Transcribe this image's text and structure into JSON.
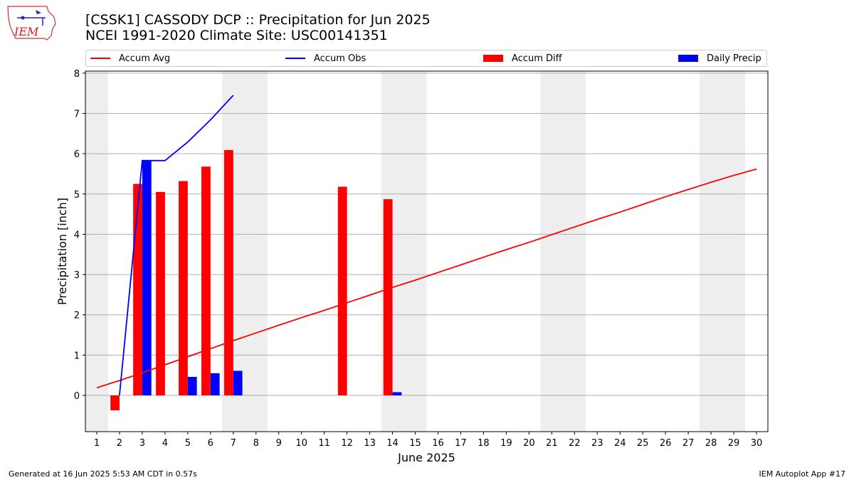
{
  "header": {
    "title_line1": "[CSSK1] CASSODY DCP :: Precipitation for Jun 2025",
    "title_line2": "NCEI 1991-2020 Climate Site: USC00141351",
    "logo_text": "IEM"
  },
  "legend": {
    "items": [
      {
        "label": "Accum Avg",
        "color": "#ff0000",
        "kind": "line"
      },
      {
        "label": "Accum Obs",
        "color": "#0000ff",
        "kind": "line"
      },
      {
        "label": "Accum Diff",
        "color": "#ff0000",
        "kind": "patch"
      },
      {
        "label": "Daily Precip",
        "color": "#0000ff",
        "kind": "patch"
      }
    ]
  },
  "footer": {
    "left": "Generated at 16 Jun 2025 5:53 AM CDT in 0.57s",
    "right": "IEM Autoplot App #17"
  },
  "chart_data": {
    "type": "bar",
    "title": "[CSSK1] CASSODY DCP :: Precipitation for Jun 2025",
    "subtitle": "NCEI 1991-2020 Climate Site: USC00141351",
    "xlabel": "June 2025",
    "ylabel": "Precipitation [inch]",
    "x": [
      1,
      2,
      3,
      4,
      5,
      6,
      7,
      8,
      9,
      10,
      11,
      12,
      13,
      14,
      15,
      16,
      17,
      18,
      19,
      20,
      21,
      22,
      23,
      24,
      25,
      26,
      27,
      28,
      29,
      30
    ],
    "xlim": [
      0.5,
      30.5
    ],
    "ylim": [
      -0.9,
      8.05
    ],
    "yticks": [
      0,
      1,
      2,
      3,
      4,
      5,
      6,
      7,
      8
    ],
    "grid": true,
    "legend_placement": "top",
    "weekend_shading": [
      [
        0.5,
        1.5
      ],
      [
        6.5,
        8.5
      ],
      [
        13.5,
        15.5
      ],
      [
        20.5,
        22.5
      ],
      [
        27.5,
        29.5
      ]
    ],
    "series": [
      {
        "name": "Accum Avg",
        "kind": "line",
        "color": "#ff0000",
        "values": [
          0.19,
          0.37,
          0.56,
          0.76,
          0.96,
          1.16,
          1.36,
          1.55,
          1.74,
          1.93,
          2.11,
          2.3,
          2.49,
          2.68,
          2.86,
          3.05,
          3.24,
          3.43,
          3.62,
          3.8,
          3.99,
          4.18,
          4.37,
          4.55,
          4.74,
          4.93,
          5.11,
          5.29,
          5.46,
          5.62
        ]
      },
      {
        "name": "Accum Obs",
        "kind": "line",
        "color": "#0000ff",
        "values": [
          null,
          0.0,
          5.83,
          5.83,
          6.29,
          6.84,
          7.45,
          null,
          null,
          null,
          null,
          null,
          null,
          null,
          null,
          null,
          null,
          null,
          null,
          null,
          null,
          null,
          null,
          null,
          null,
          null,
          null,
          null,
          null,
          null
        ]
      },
      {
        "name": "Accum Diff",
        "kind": "bar",
        "color": "#ff0000",
        "offset": -0.2,
        "values": [
          null,
          -0.37,
          5.25,
          5.05,
          5.32,
          5.68,
          6.09,
          null,
          null,
          null,
          null,
          5.18,
          null,
          4.87,
          null,
          null,
          null,
          null,
          null,
          null,
          null,
          null,
          null,
          null,
          null,
          null,
          null,
          null,
          null,
          null
        ]
      },
      {
        "name": "Daily Precip",
        "kind": "bar",
        "color": "#0000ff",
        "offset": 0.2,
        "values": [
          null,
          null,
          5.83,
          null,
          0.46,
          0.55,
          0.61,
          null,
          null,
          null,
          null,
          null,
          null,
          0.08,
          null,
          null,
          null,
          null,
          null,
          null,
          null,
          null,
          null,
          null,
          null,
          null,
          null,
          null,
          null,
          null
        ]
      }
    ]
  }
}
